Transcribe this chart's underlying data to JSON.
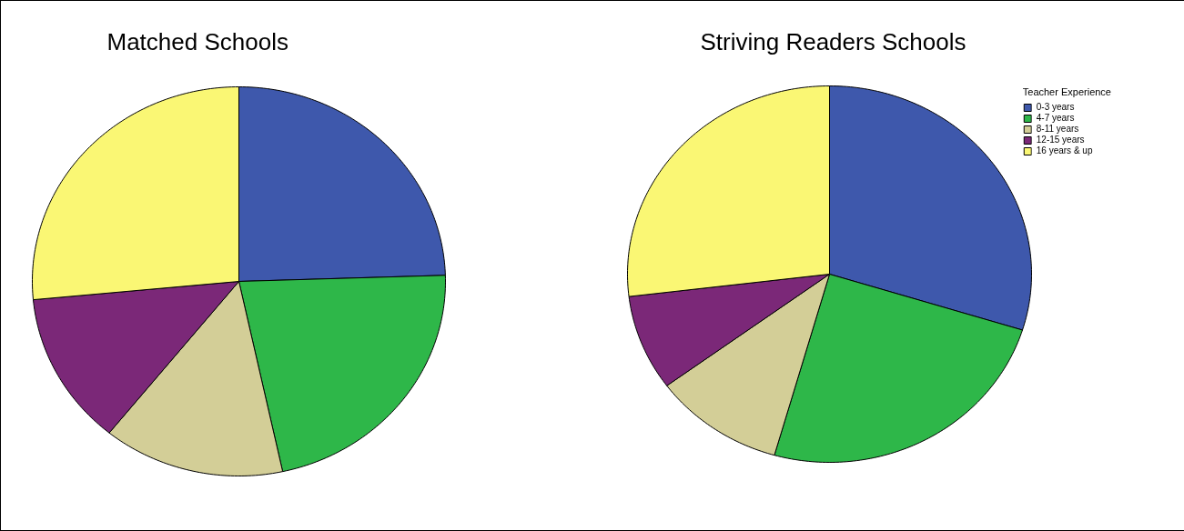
{
  "chart_data": [
    {
      "type": "pie",
      "title": "Matched Schools",
      "categories": [
        null,
        null,
        null,
        null,
        null
      ],
      "values": [
        24.5,
        22.1,
        14.2,
        12.7,
        26.5
      ],
      "colors": [
        "#3e58ac",
        "#2eb749",
        "#d3ce97",
        "#7b2878",
        "#faf774"
      ]
    },
    {
      "type": "pie",
      "title": "Striving Readers Schools",
      "categories": [
        "0-3 years",
        "4-7 years",
        "8-11 years",
        "12-15 years",
        "16 years & up"
      ],
      "values": [
        29.8,
        24.6,
        10.5,
        8.2,
        26.9
      ],
      "colors": [
        "#3e58ac",
        "#2eb749",
        "#d3ce97",
        "#7b2878",
        "#faf774"
      ],
      "legend": "top right",
      "legend_title": "Teacher Experience"
    }
  ]
}
